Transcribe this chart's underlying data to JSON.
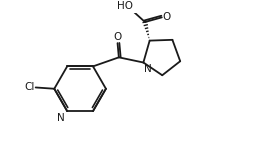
{
  "bg_color": "#ffffff",
  "line_color": "#1a1a1a",
  "line_width": 1.3,
  "font_size": 7.5,
  "fig_width": 2.79,
  "fig_height": 1.56,
  "dpi": 100,
  "xlim": [
    0,
    9.5
  ],
  "ylim": [
    0,
    5.5
  ]
}
